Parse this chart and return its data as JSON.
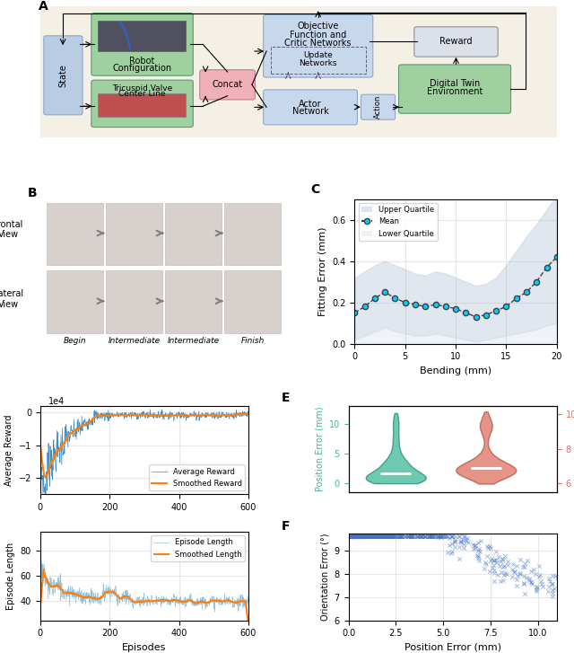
{
  "panel_C": {
    "bending": [
      0,
      1,
      2,
      3,
      4,
      5,
      6,
      7,
      8,
      9,
      10,
      11,
      12,
      13,
      14,
      15,
      16,
      17,
      18,
      19,
      20
    ],
    "mean": [
      0.15,
      0.18,
      0.22,
      0.25,
      0.22,
      0.2,
      0.19,
      0.18,
      0.19,
      0.18,
      0.17,
      0.15,
      0.13,
      0.14,
      0.16,
      0.18,
      0.22,
      0.25,
      0.3,
      0.37,
      0.42
    ],
    "upper": [
      0.32,
      0.35,
      0.38,
      0.4,
      0.38,
      0.36,
      0.34,
      0.33,
      0.35,
      0.34,
      0.32,
      0.3,
      0.28,
      0.29,
      0.32,
      0.38,
      0.45,
      0.52,
      0.58,
      0.65,
      0.72
    ],
    "lower": [
      0.02,
      0.04,
      0.06,
      0.08,
      0.06,
      0.05,
      0.04,
      0.04,
      0.05,
      0.04,
      0.03,
      0.02,
      0.01,
      0.02,
      0.03,
      0.04,
      0.05,
      0.06,
      0.07,
      0.09,
      0.1
    ],
    "xlabel": "Bending (mm)",
    "ylabel": "Fitting Error (mm)",
    "legend_upper": "Upper Quartile",
    "legend_mean": "Mean",
    "legend_lower": "Lower Quartile",
    "ylim": [
      0.0,
      0.7
    ],
    "xlim": [
      0,
      20
    ]
  },
  "panel_D_reward": {
    "ylabel": "Average Reward",
    "legend_avg": "Average Reward",
    "legend_smooth": "Smoothed Reward",
    "ylim": [
      -2.5,
      0.2
    ],
    "xlim": [
      0,
      600
    ],
    "scale_label": "1e4"
  },
  "panel_D_episode": {
    "ylabel": "Episode Length",
    "xlabel": "Episodes",
    "legend_ep": "Episode Length",
    "legend_smooth": "Smoothed Length",
    "ylim": [
      25,
      95
    ],
    "xlim": [
      0,
      600
    ]
  },
  "panel_E": {
    "pos_color": "#3db89a",
    "ori_color": "#e07060",
    "pos_label": "Position Error (mm)",
    "ori_label": "Orientation Error (°)",
    "left_ylim": [
      -1.5,
      13
    ],
    "right_ylim": [
      5.5,
      10.5
    ]
  },
  "panel_F": {
    "xlabel": "Position Error (mm)",
    "ylabel": "Orientation Error (°)",
    "xlim": [
      0,
      11
    ],
    "ylim": [
      6.0,
      9.7
    ],
    "color": "#4472c4",
    "yticks": [
      6,
      7,
      8,
      9
    ]
  },
  "colors": {
    "blue_line": "#1f77b4",
    "light_blue_line": "#7ab8d8",
    "orange_line": "#ff7f0e",
    "cyan_dot": "#00cfff",
    "gray_fill_upper": "#c8d4e0",
    "gray_fill_lower": "#dce6f0",
    "green_box": "#8fbc8f",
    "pink_box": "#f4a0a0",
    "light_blue_box": "#b0c8e0",
    "background": "#f5f0e6"
  }
}
